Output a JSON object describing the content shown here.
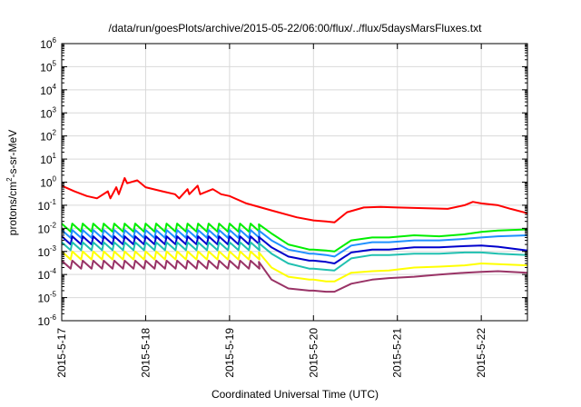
{
  "chart_data": {
    "type": "line",
    "title": "/data/run/goesPlots/archive/2015-05-22/06:00/flux/../flux/5daysMarsFluxes.txt",
    "xlabel": "Coordinated Universal Time (UTC)",
    "ylabel": "protons/cm2-s-sr-MeV",
    "yscale": "log",
    "ylim": [
      1e-06,
      1000000.0
    ],
    "xlim": [
      0,
      5.55
    ],
    "x_ticks": [
      {
        "value": 0,
        "label": "2015-5-17"
      },
      {
        "value": 1,
        "label": "2015-5-18"
      },
      {
        "value": 2,
        "label": "2015-5-19"
      },
      {
        "value": 3,
        "label": "2015-5-20"
      },
      {
        "value": 4,
        "label": "2015-5-21"
      },
      {
        "value": 5,
        "label": "2015-5-22"
      }
    ],
    "y_ticks": [
      {
        "base": "10",
        "exp": "-6",
        "value": 1e-06
      },
      {
        "base": "10",
        "exp": "-5",
        "value": 1e-05
      },
      {
        "base": "10",
        "exp": "-4",
        "value": 0.0001
      },
      {
        "base": "10",
        "exp": "-3",
        "value": 0.001
      },
      {
        "base": "10",
        "exp": "-2",
        "value": 0.01
      },
      {
        "base": "10",
        "exp": "-1",
        "value": 0.1
      },
      {
        "base": "10",
        "exp": "0",
        "value": 1
      },
      {
        "base": "10",
        "exp": "1",
        "value": 10
      },
      {
        "base": "10",
        "exp": "2",
        "value": 100
      },
      {
        "base": "10",
        "exp": "3",
        "value": 1000
      },
      {
        "base": "10",
        "exp": "4",
        "value": 10000
      },
      {
        "base": "10",
        "exp": "5",
        "value": 100000
      },
      {
        "base": "10",
        "exp": "6",
        "value": 1000000
      }
    ],
    "grid": true,
    "legend": "none",
    "series": [
      {
        "color": "#ff0000",
        "x": [
          0,
          0.15,
          0.3,
          0.42,
          0.55,
          0.58,
          0.65,
          0.68,
          0.75,
          0.78,
          0.9,
          1.0,
          1.2,
          1.35,
          1.4,
          1.5,
          1.52,
          1.62,
          1.65,
          1.8,
          1.9,
          2.0,
          2.2,
          2.5,
          2.8,
          3.0,
          3.15,
          3.25,
          3.4,
          3.6,
          3.8,
          4.0,
          4.3,
          4.6,
          4.8,
          4.9,
          5.0,
          5.2,
          5.35,
          5.55
        ],
        "y": [
          0.7,
          0.4,
          0.25,
          0.2,
          0.4,
          0.2,
          0.6,
          0.3,
          1.5,
          0.9,
          1.2,
          0.6,
          0.4,
          0.3,
          0.2,
          0.5,
          0.3,
          0.7,
          0.3,
          0.5,
          0.3,
          0.25,
          0.12,
          0.06,
          0.03,
          0.022,
          0.02,
          0.018,
          0.05,
          0.08,
          0.085,
          0.08,
          0.075,
          0.07,
          0.1,
          0.14,
          0.12,
          0.1,
          0.07,
          0.045
        ]
      },
      {
        "color": "#00ee00",
        "sawtooth": true,
        "x": [
          0,
          0.25,
          0.5,
          0.75,
          1.0,
          1.25,
          1.5,
          1.75,
          2.0,
          2.2,
          2.3,
          2.35,
          2.5,
          2.7,
          2.95,
          3.0,
          3.15,
          3.25,
          3.45,
          3.7,
          3.9,
          4.2,
          4.5,
          4.8,
          5.0,
          5.2,
          5.55
        ],
        "y": [
          0.016,
          0.016,
          0.016,
          0.016,
          0.016,
          0.016,
          0.016,
          0.016,
          0.016,
          0.016,
          0.014,
          0.015,
          0.006,
          0.002,
          0.0012,
          0.0012,
          0.0011,
          0.001,
          0.003,
          0.004,
          0.004,
          0.005,
          0.0045,
          0.0055,
          0.007,
          0.008,
          0.009
        ]
      },
      {
        "color": "#1e90ff",
        "sawtooth": true,
        "x": [
          0,
          0.5,
          1.0,
          1.5,
          2.0,
          2.3,
          2.35,
          2.5,
          2.7,
          2.95,
          3.0,
          3.15,
          3.25,
          3.45,
          3.7,
          3.9,
          4.2,
          4.5,
          4.8,
          5.0,
          5.2,
          5.55
        ],
        "y": [
          0.0085,
          0.0085,
          0.0085,
          0.0085,
          0.0085,
          0.0085,
          0.008,
          0.003,
          0.0012,
          0.0008,
          0.0008,
          0.0007,
          0.0006,
          0.0018,
          0.0025,
          0.0025,
          0.003,
          0.003,
          0.0035,
          0.004,
          0.0045,
          0.005
        ]
      },
      {
        "color": "#0000cc",
        "sawtooth": true,
        "x": [
          0,
          0.5,
          1.0,
          1.5,
          2.0,
          2.3,
          2.35,
          2.5,
          2.7,
          2.95,
          3.0,
          3.15,
          3.25,
          3.45,
          3.7,
          3.9,
          4.2,
          4.5,
          4.8,
          5.0,
          5.2,
          5.55
        ],
        "y": [
          0.0045,
          0.0045,
          0.0045,
          0.0045,
          0.0045,
          0.0045,
          0.0042,
          0.0015,
          0.0006,
          0.0004,
          0.0004,
          0.00035,
          0.0003,
          0.0009,
          0.0012,
          0.0012,
          0.0015,
          0.0015,
          0.0017,
          0.0018,
          0.0016,
          0.0011
        ]
      },
      {
        "color": "#20c0b0",
        "sawtooth": true,
        "x": [
          0,
          0.5,
          1.0,
          1.5,
          2.0,
          2.3,
          2.35,
          2.5,
          2.7,
          2.95,
          3.0,
          3.15,
          3.25,
          3.45,
          3.7,
          3.9,
          4.2,
          4.5,
          4.8,
          5.0,
          5.2,
          5.55
        ],
        "y": [
          0.0025,
          0.0025,
          0.0025,
          0.0025,
          0.0025,
          0.0025,
          0.0023,
          0.0008,
          0.0003,
          0.00018,
          0.00018,
          0.00016,
          0.00015,
          0.0005,
          0.0007,
          0.0007,
          0.0008,
          0.0008,
          0.0009,
          0.0009,
          0.0008,
          0.0007
        ]
      },
      {
        "color": "#ffff00",
        "sawtooth": true,
        "x": [
          0,
          0.5,
          1.0,
          1.5,
          2.0,
          2.3,
          2.35,
          2.5,
          2.7,
          2.95,
          3.0,
          3.15,
          3.25,
          3.45,
          3.7,
          3.9,
          4.2,
          4.5,
          4.8,
          5.0,
          5.2,
          5.55
        ],
        "y": [
          0.001,
          0.001,
          0.001,
          0.001,
          0.001,
          0.001,
          0.0009,
          0.0002,
          8e-05,
          6e-05,
          6e-05,
          5e-05,
          5e-05,
          0.00012,
          0.00014,
          0.00015,
          0.0002,
          0.00022,
          0.00025,
          0.0003,
          0.00028,
          0.00025
        ]
      },
      {
        "color": "#993366",
        "sawtooth": true,
        "x": [
          0,
          0.5,
          1.0,
          1.5,
          2.0,
          2.3,
          2.35,
          2.5,
          2.7,
          2.95,
          3.0,
          3.15,
          3.25,
          3.45,
          3.7,
          3.9,
          4.2,
          4.5,
          4.8,
          5.0,
          5.2,
          5.55
        ],
        "y": [
          0.0004,
          0.0004,
          0.0004,
          0.0004,
          0.0004,
          0.0004,
          0.00035,
          6e-05,
          2.5e-05,
          2e-05,
          2e-05,
          1.8e-05,
          1.8e-05,
          4e-05,
          6e-05,
          7e-05,
          8e-05,
          0.0001,
          0.00012,
          0.00013,
          0.00014,
          0.00012
        ]
      }
    ]
  }
}
